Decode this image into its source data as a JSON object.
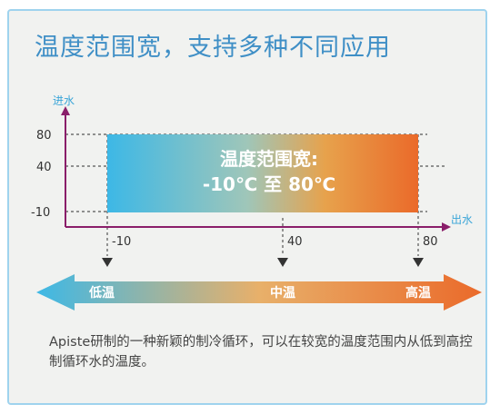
{
  "title": "温度范围宽，支持多种不同应用",
  "chart": {
    "y_axis_label": "进水",
    "x_axis_label": "出水",
    "y_ticks": [
      "80",
      "40",
      "-10"
    ],
    "x_ticks": [
      "-10",
      "40",
      "80"
    ],
    "box_line1": "温度范围宽:",
    "box_line2": "-10℃ 至 80℃"
  },
  "scale": {
    "low": "低温",
    "mid": "中温",
    "high": "高温"
  },
  "description": "Apiste研制的一种新颖的制冷循环，可以在较宽的温度范围内从低到高控制循环水的温度。",
  "colors": {
    "blue": "#3db8e6",
    "orange": "#ea6a2a",
    "title": "#3f8fc6",
    "axis": "#8a1e6a"
  }
}
